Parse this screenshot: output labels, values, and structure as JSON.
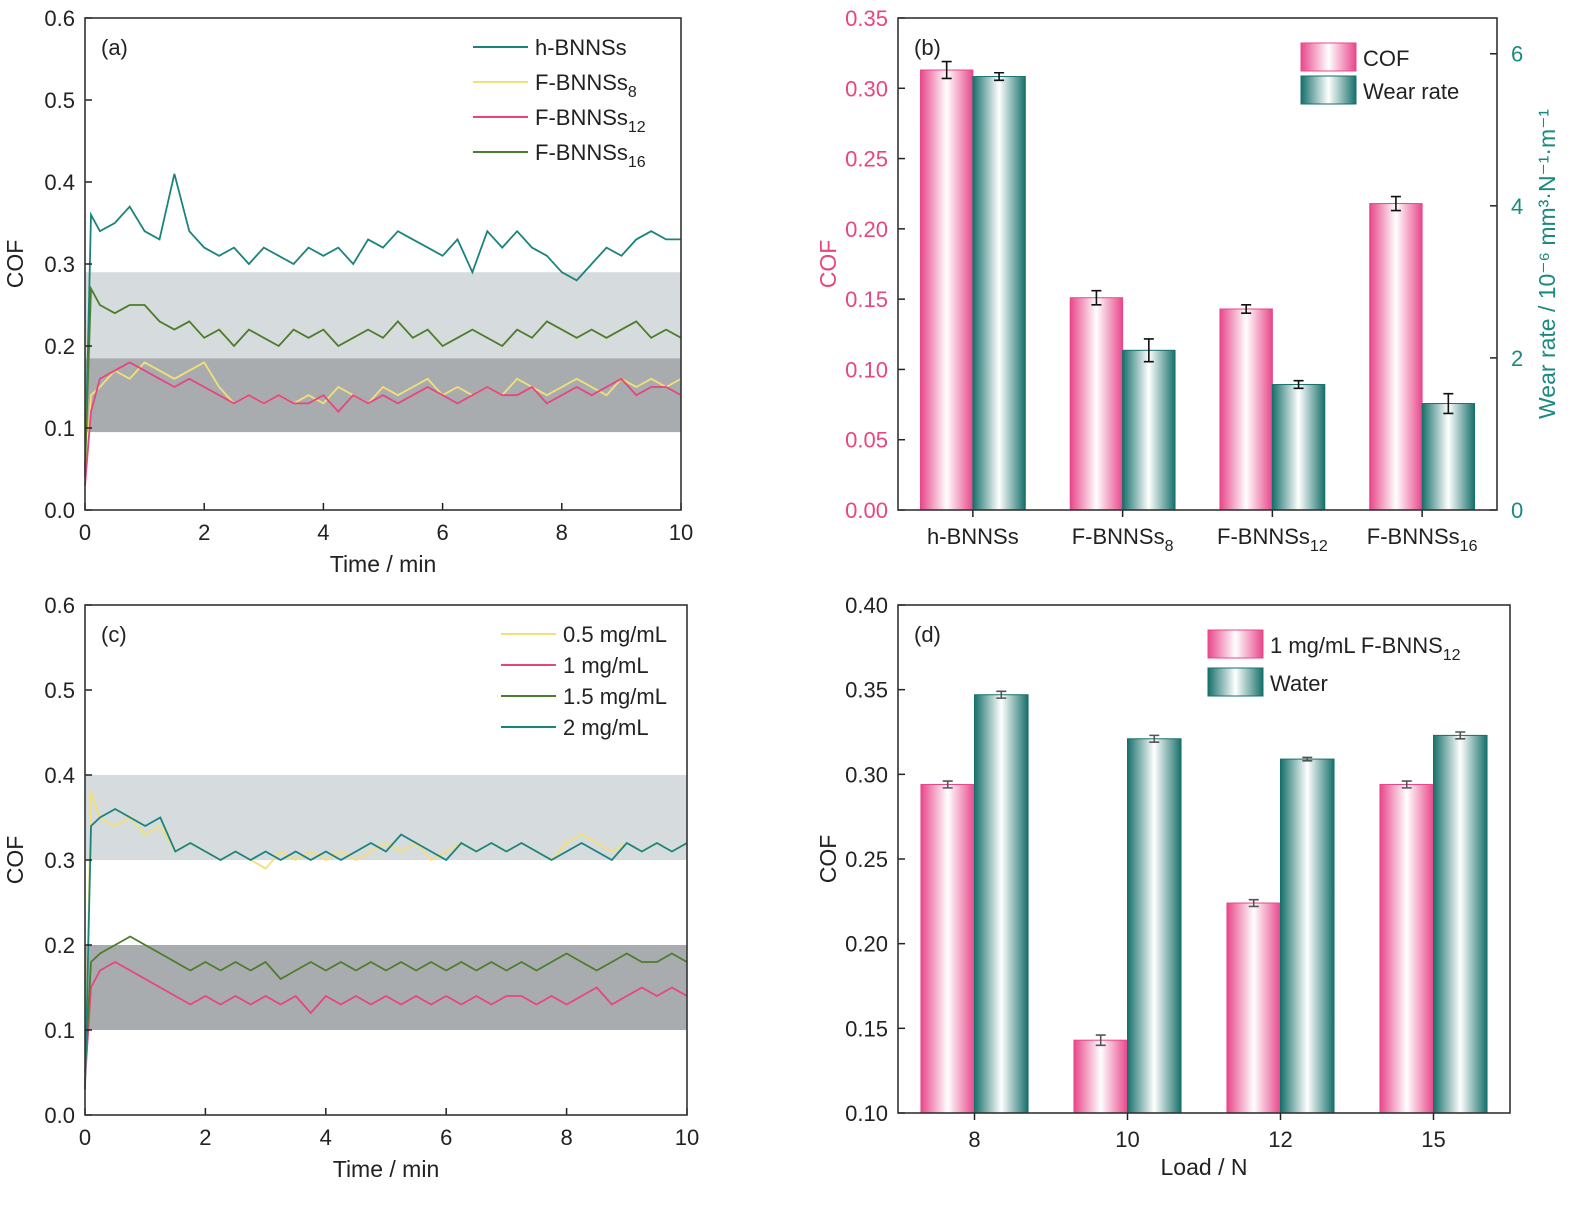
{
  "colors": {
    "teal": "#1b837d",
    "yellow": "#f1e07a",
    "pink": "#e8457f",
    "green": "#4c7d2c",
    "band_light": "#d6dbdd",
    "band_dark": "#a8acaf",
    "bar_pink": "#e8478a",
    "bar_teal": "#17706b",
    "axis_pink": "#e8467f",
    "axis_teal": "#1a8a80"
  },
  "chart_data": [
    {
      "panel": "(a)",
      "type": "line",
      "xlabel": "Time / min",
      "ylabel": "COF",
      "xlim": [
        0,
        10
      ],
      "ylim": [
        0,
        0.6
      ],
      "xticks": [
        "0",
        "2",
        "4",
        "6",
        "8",
        "10"
      ],
      "yticks": [
        "0.0",
        "0.1",
        "0.2",
        "0.3",
        "0.4",
        "0.5",
        "0.6"
      ],
      "bands": [
        {
          "from": 0.185,
          "to": 0.29,
          "shade": "light"
        },
        {
          "from": 0.095,
          "to": 0.185,
          "shade": "dark"
        }
      ],
      "legend_position": "top-right",
      "x": [
        0,
        0.1,
        0.25,
        0.5,
        0.75,
        1,
        1.25,
        1.5,
        1.75,
        2,
        2.25,
        2.5,
        2.75,
        3,
        3.25,
        3.5,
        3.75,
        4,
        4.25,
        4.5,
        4.75,
        5,
        5.25,
        5.5,
        5.75,
        6,
        6.25,
        6.5,
        6.75,
        7,
        7.25,
        7.5,
        7.75,
        8,
        8.25,
        8.5,
        8.75,
        9,
        9.25,
        9.5,
        9.75,
        10
      ],
      "series": [
        {
          "name": "h-BNNSs",
          "sub": "",
          "color": "teal",
          "values": [
            0.04,
            0.36,
            0.34,
            0.35,
            0.37,
            0.34,
            0.33,
            0.41,
            0.34,
            0.32,
            0.31,
            0.32,
            0.3,
            0.32,
            0.31,
            0.3,
            0.32,
            0.31,
            0.32,
            0.3,
            0.33,
            0.32,
            0.34,
            0.33,
            0.32,
            0.31,
            0.33,
            0.29,
            0.34,
            0.32,
            0.34,
            0.32,
            0.31,
            0.29,
            0.28,
            0.3,
            0.32,
            0.31,
            0.33,
            0.34,
            0.33,
            0.33
          ]
        },
        {
          "name": "F-BNNSs",
          "sub": "8",
          "color": "yellow",
          "values": [
            0.03,
            0.14,
            0.15,
            0.17,
            0.16,
            0.18,
            0.17,
            0.16,
            0.17,
            0.18,
            0.15,
            0.13,
            0.14,
            0.13,
            0.14,
            0.13,
            0.14,
            0.13,
            0.15,
            0.14,
            0.13,
            0.15,
            0.14,
            0.15,
            0.16,
            0.14,
            0.15,
            0.14,
            0.15,
            0.14,
            0.16,
            0.15,
            0.14,
            0.15,
            0.16,
            0.15,
            0.14,
            0.16,
            0.15,
            0.16,
            0.15,
            0.16
          ]
        },
        {
          "name": "F-BNNSs",
          "sub": "12",
          "color": "pink",
          "values": [
            0.03,
            0.12,
            0.16,
            0.17,
            0.18,
            0.17,
            0.16,
            0.15,
            0.16,
            0.15,
            0.14,
            0.13,
            0.14,
            0.13,
            0.14,
            0.13,
            0.13,
            0.14,
            0.12,
            0.14,
            0.13,
            0.14,
            0.13,
            0.14,
            0.15,
            0.14,
            0.13,
            0.14,
            0.15,
            0.14,
            0.14,
            0.15,
            0.13,
            0.14,
            0.15,
            0.14,
            0.15,
            0.16,
            0.14,
            0.15,
            0.15,
            0.14
          ]
        },
        {
          "name": "F-BNNSs",
          "sub": "16",
          "color": "green",
          "values": [
            0.05,
            0.27,
            0.25,
            0.24,
            0.25,
            0.25,
            0.23,
            0.22,
            0.23,
            0.21,
            0.22,
            0.2,
            0.22,
            0.21,
            0.2,
            0.22,
            0.21,
            0.22,
            0.2,
            0.21,
            0.22,
            0.21,
            0.23,
            0.21,
            0.22,
            0.2,
            0.21,
            0.22,
            0.21,
            0.2,
            0.22,
            0.21,
            0.23,
            0.22,
            0.21,
            0.22,
            0.21,
            0.22,
            0.23,
            0.21,
            0.22,
            0.21
          ]
        }
      ]
    },
    {
      "panel": "(b)",
      "type": "bar",
      "ylabel": "COF",
      "ylabel_right": "Wear rate / 10⁻⁶ mm³·N⁻¹·m⁻¹",
      "ylim": [
        0,
        0.35
      ],
      "ylim_right": [
        0,
        6.47
      ],
      "yticks": [
        "0.00",
        "0.05",
        "0.10",
        "0.15",
        "0.20",
        "0.25",
        "0.30",
        "0.35"
      ],
      "yticks_right": [
        "0",
        "2",
        "4",
        "6"
      ],
      "legend_position": "top-right",
      "categories": [
        {
          "name": "h-BNNSs",
          "sub": ""
        },
        {
          "name": "F-BNNSs",
          "sub": "8"
        },
        {
          "name": "F-BNNSs",
          "sub": "12"
        },
        {
          "name": "F-BNNSs",
          "sub": "16"
        }
      ],
      "series": [
        {
          "name": "COF",
          "axis": "left",
          "color": "bar_pink",
          "values": [
            0.313,
            0.151,
            0.143,
            0.218
          ],
          "errors": [
            0.006,
            0.005,
            0.003,
            0.005
          ]
        },
        {
          "name": "Wear rate",
          "axis": "right",
          "color": "bar_teal",
          "values": [
            5.7,
            2.1,
            1.65,
            1.4
          ],
          "errors": [
            0.05,
            0.15,
            0.05,
            0.13
          ]
        }
      ]
    },
    {
      "panel": "(c)",
      "type": "line",
      "xlabel": "Time / min",
      "ylabel": "COF",
      "xlim": [
        0,
        10
      ],
      "ylim": [
        0,
        0.6
      ],
      "xticks": [
        "0",
        "2",
        "4",
        "6",
        "8",
        "10"
      ],
      "yticks": [
        "0.0",
        "0.1",
        "0.2",
        "0.3",
        "0.4",
        "0.5",
        "0.6"
      ],
      "bands": [
        {
          "from": 0.3,
          "to": 0.4,
          "shade": "light"
        },
        {
          "from": 0.1,
          "to": 0.2,
          "shade": "dark"
        }
      ],
      "legend_position": "top-right",
      "x": [
        0,
        0.1,
        0.25,
        0.5,
        0.75,
        1,
        1.25,
        1.5,
        1.75,
        2,
        2.25,
        2.5,
        2.75,
        3,
        3.25,
        3.5,
        3.75,
        4,
        4.25,
        4.5,
        4.75,
        5,
        5.25,
        5.5,
        5.75,
        6,
        6.25,
        6.5,
        6.75,
        7,
        7.25,
        7.5,
        7.75,
        8,
        8.25,
        8.5,
        8.75,
        9,
        9.25,
        9.5,
        9.75,
        10
      ],
      "series": [
        {
          "name": "0.5 mg/mL",
          "sub": "",
          "color": "yellow",
          "values": [
            0.03,
            0.38,
            0.35,
            0.34,
            0.35,
            0.33,
            0.34,
            0.31,
            0.32,
            0.31,
            0.3,
            0.31,
            0.3,
            0.29,
            0.31,
            0.3,
            0.31,
            0.3,
            0.31,
            0.3,
            0.31,
            0.32,
            0.31,
            0.32,
            0.3,
            0.31,
            0.32,
            0.31,
            0.32,
            0.31,
            0.32,
            0.31,
            0.3,
            0.32,
            0.33,
            0.32,
            0.31,
            0.32,
            0.31,
            0.32,
            0.31,
            0.32
          ]
        },
        {
          "name": "1 mg/mL",
          "sub": "",
          "color": "pink",
          "values": [
            0.04,
            0.15,
            0.17,
            0.18,
            0.17,
            0.16,
            0.15,
            0.14,
            0.13,
            0.14,
            0.13,
            0.14,
            0.13,
            0.14,
            0.13,
            0.14,
            0.12,
            0.14,
            0.13,
            0.14,
            0.13,
            0.14,
            0.13,
            0.14,
            0.13,
            0.14,
            0.13,
            0.14,
            0.13,
            0.14,
            0.14,
            0.13,
            0.14,
            0.13,
            0.14,
            0.15,
            0.13,
            0.14,
            0.15,
            0.14,
            0.15,
            0.14
          ]
        },
        {
          "name": "1.5 mg/mL",
          "sub": "",
          "color": "green",
          "values": [
            0.05,
            0.18,
            0.19,
            0.2,
            0.21,
            0.2,
            0.19,
            0.18,
            0.17,
            0.18,
            0.17,
            0.18,
            0.17,
            0.18,
            0.16,
            0.17,
            0.18,
            0.17,
            0.18,
            0.17,
            0.18,
            0.17,
            0.18,
            0.17,
            0.18,
            0.17,
            0.18,
            0.17,
            0.18,
            0.17,
            0.18,
            0.17,
            0.18,
            0.19,
            0.18,
            0.17,
            0.18,
            0.19,
            0.18,
            0.18,
            0.19,
            0.18
          ]
        },
        {
          "name": "2 mg/mL",
          "sub": "",
          "color": "teal",
          "values": [
            0.03,
            0.34,
            0.35,
            0.36,
            0.35,
            0.34,
            0.35,
            0.31,
            0.32,
            0.31,
            0.3,
            0.31,
            0.3,
            0.31,
            0.3,
            0.31,
            0.3,
            0.31,
            0.3,
            0.31,
            0.32,
            0.31,
            0.33,
            0.32,
            0.31,
            0.3,
            0.32,
            0.31,
            0.32,
            0.31,
            0.32,
            0.31,
            0.3,
            0.31,
            0.32,
            0.31,
            0.3,
            0.32,
            0.31,
            0.32,
            0.31,
            0.32
          ]
        }
      ]
    },
    {
      "panel": "(d)",
      "type": "bar",
      "xlabel": "Load / N",
      "ylabel": "COF",
      "ylim": [
        0.1,
        0.4
      ],
      "yticks": [
        "0.10",
        "0.15",
        "0.20",
        "0.25",
        "0.30",
        "0.35",
        "0.40"
      ],
      "legend_position": "top-right",
      "categories": [
        {
          "name": "8",
          "sub": ""
        },
        {
          "name": "10",
          "sub": ""
        },
        {
          "name": "12",
          "sub": ""
        },
        {
          "name": "15",
          "sub": ""
        }
      ],
      "series": [
        {
          "name": "1 mg/mL F-BNNS",
          "sub": "12",
          "axis": "left",
          "color": "bar_pink",
          "values": [
            0.294,
            0.143,
            0.224,
            0.294
          ],
          "errors": [
            0.002,
            0.003,
            0.002,
            0.002
          ]
        },
        {
          "name": "Water",
          "sub": "",
          "axis": "left",
          "color": "bar_teal",
          "values": [
            0.347,
            0.321,
            0.309,
            0.323
          ],
          "errors": [
            0.002,
            0.002,
            0.001,
            0.002
          ]
        }
      ]
    }
  ]
}
